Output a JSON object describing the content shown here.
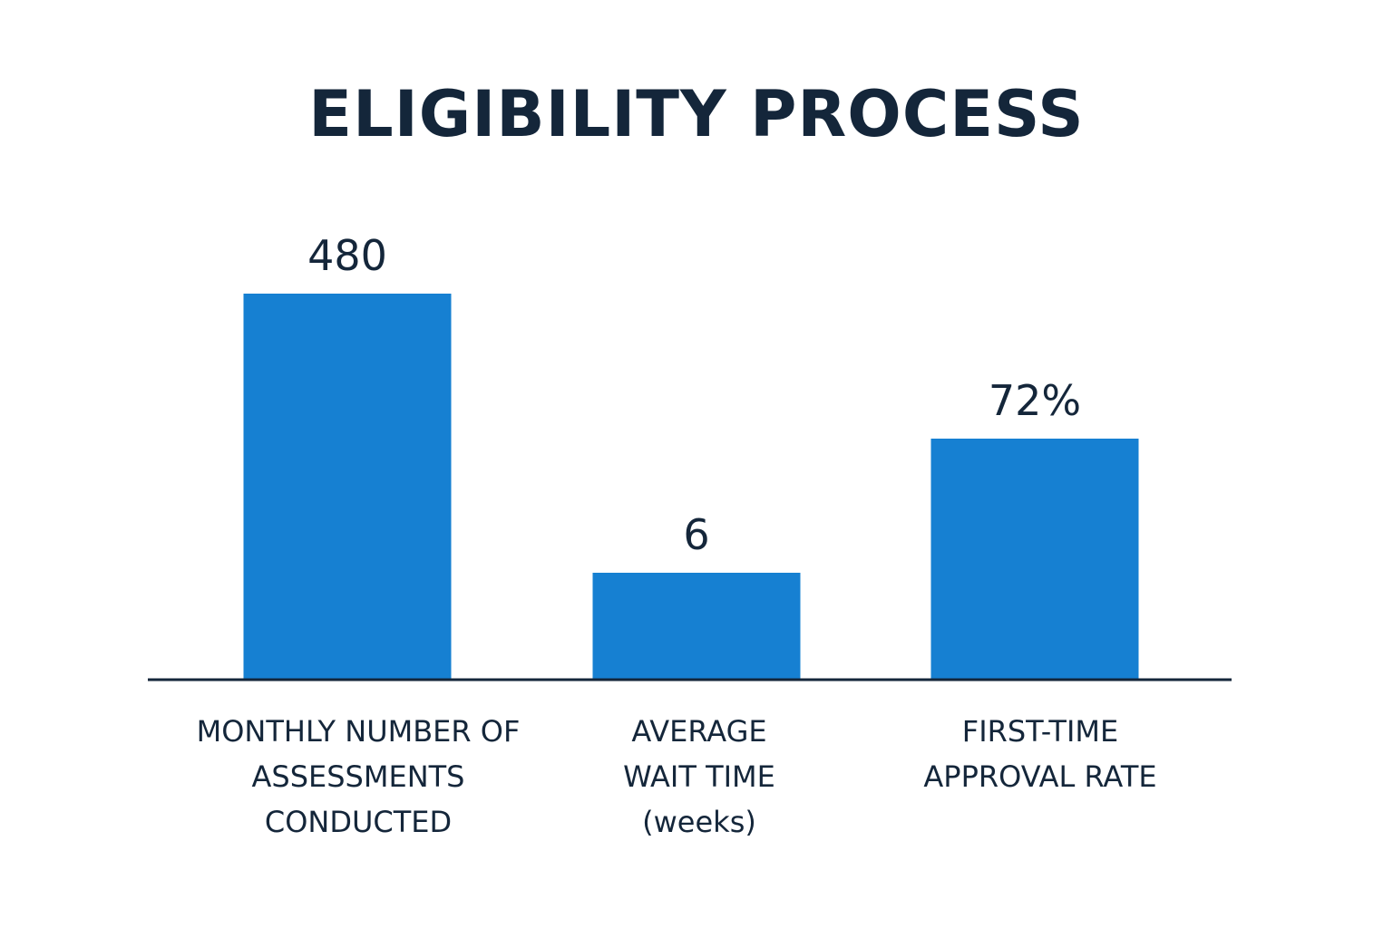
{
  "chart_data": {
    "type": "bar",
    "title": "ELIGIBILITY PROCESS",
    "categories": [
      [
        "MONTHLY NUMBER OF",
        "ASSESSMENTS",
        "CONDUCTED"
      ],
      [
        "AVERAGE",
        "WAIT TIME",
        "(weeks)"
      ],
      [
        "FIRST-TIME",
        "APPROVAL RATE"
      ]
    ],
    "values": [
      480,
      6,
      72
    ],
    "value_labels": [
      "480",
      "6",
      "72%"
    ],
    "bar_color": "#1680d2",
    "axis_color": "#14263a",
    "xlabel": "",
    "ylabel": "",
    "grid": false
  }
}
